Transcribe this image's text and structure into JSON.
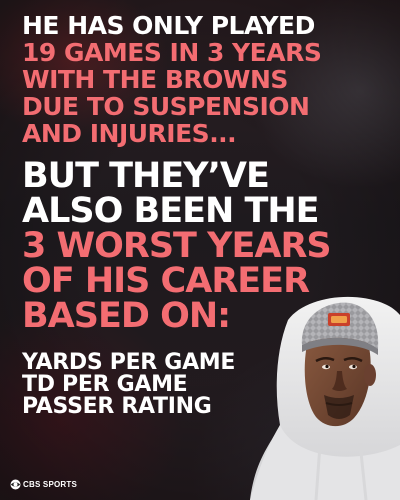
{
  "headline": {
    "block1": [
      {
        "text": "HE HAS ONLY PLAYED",
        "color": "#ffffff"
      },
      {
        "text": "19 GAMES IN 3 YEARS",
        "color": "#f36d72"
      },
      {
        "text": "WITH THE BROWNS",
        "color": "#f36d72"
      },
      {
        "text": "DUE TO SUSPENSION",
        "color": "#f36d72"
      },
      {
        "text": "AND INJURIES...",
        "color": "#f36d72"
      }
    ],
    "block2": [
      {
        "text": "BUT THEY’VE",
        "color": "#ffffff"
      },
      {
        "text": "ALSO BEEN THE",
        "color": "#ffffff"
      },
      {
        "text": "3 WORST YEARS",
        "color": "#f36d72"
      },
      {
        "text": "OF HIS CAREER",
        "color": "#f36d72"
      },
      {
        "text": "BASED ON:",
        "color": "#f36d72"
      }
    ],
    "block3": [
      {
        "text": "YARDS PER GAME",
        "color": "#ffffff"
      },
      {
        "text": "TD PER GAME",
        "color": "#ffffff"
      },
      {
        "text": "PASSER RATING",
        "color": "#ffffff"
      }
    ]
  },
  "brand": {
    "name": "CBS SPORTS",
    "icon": "cbs-eye-icon"
  },
  "colors": {
    "accent": "#f36d72",
    "text": "#ffffff",
    "background": "#221b1f"
  }
}
